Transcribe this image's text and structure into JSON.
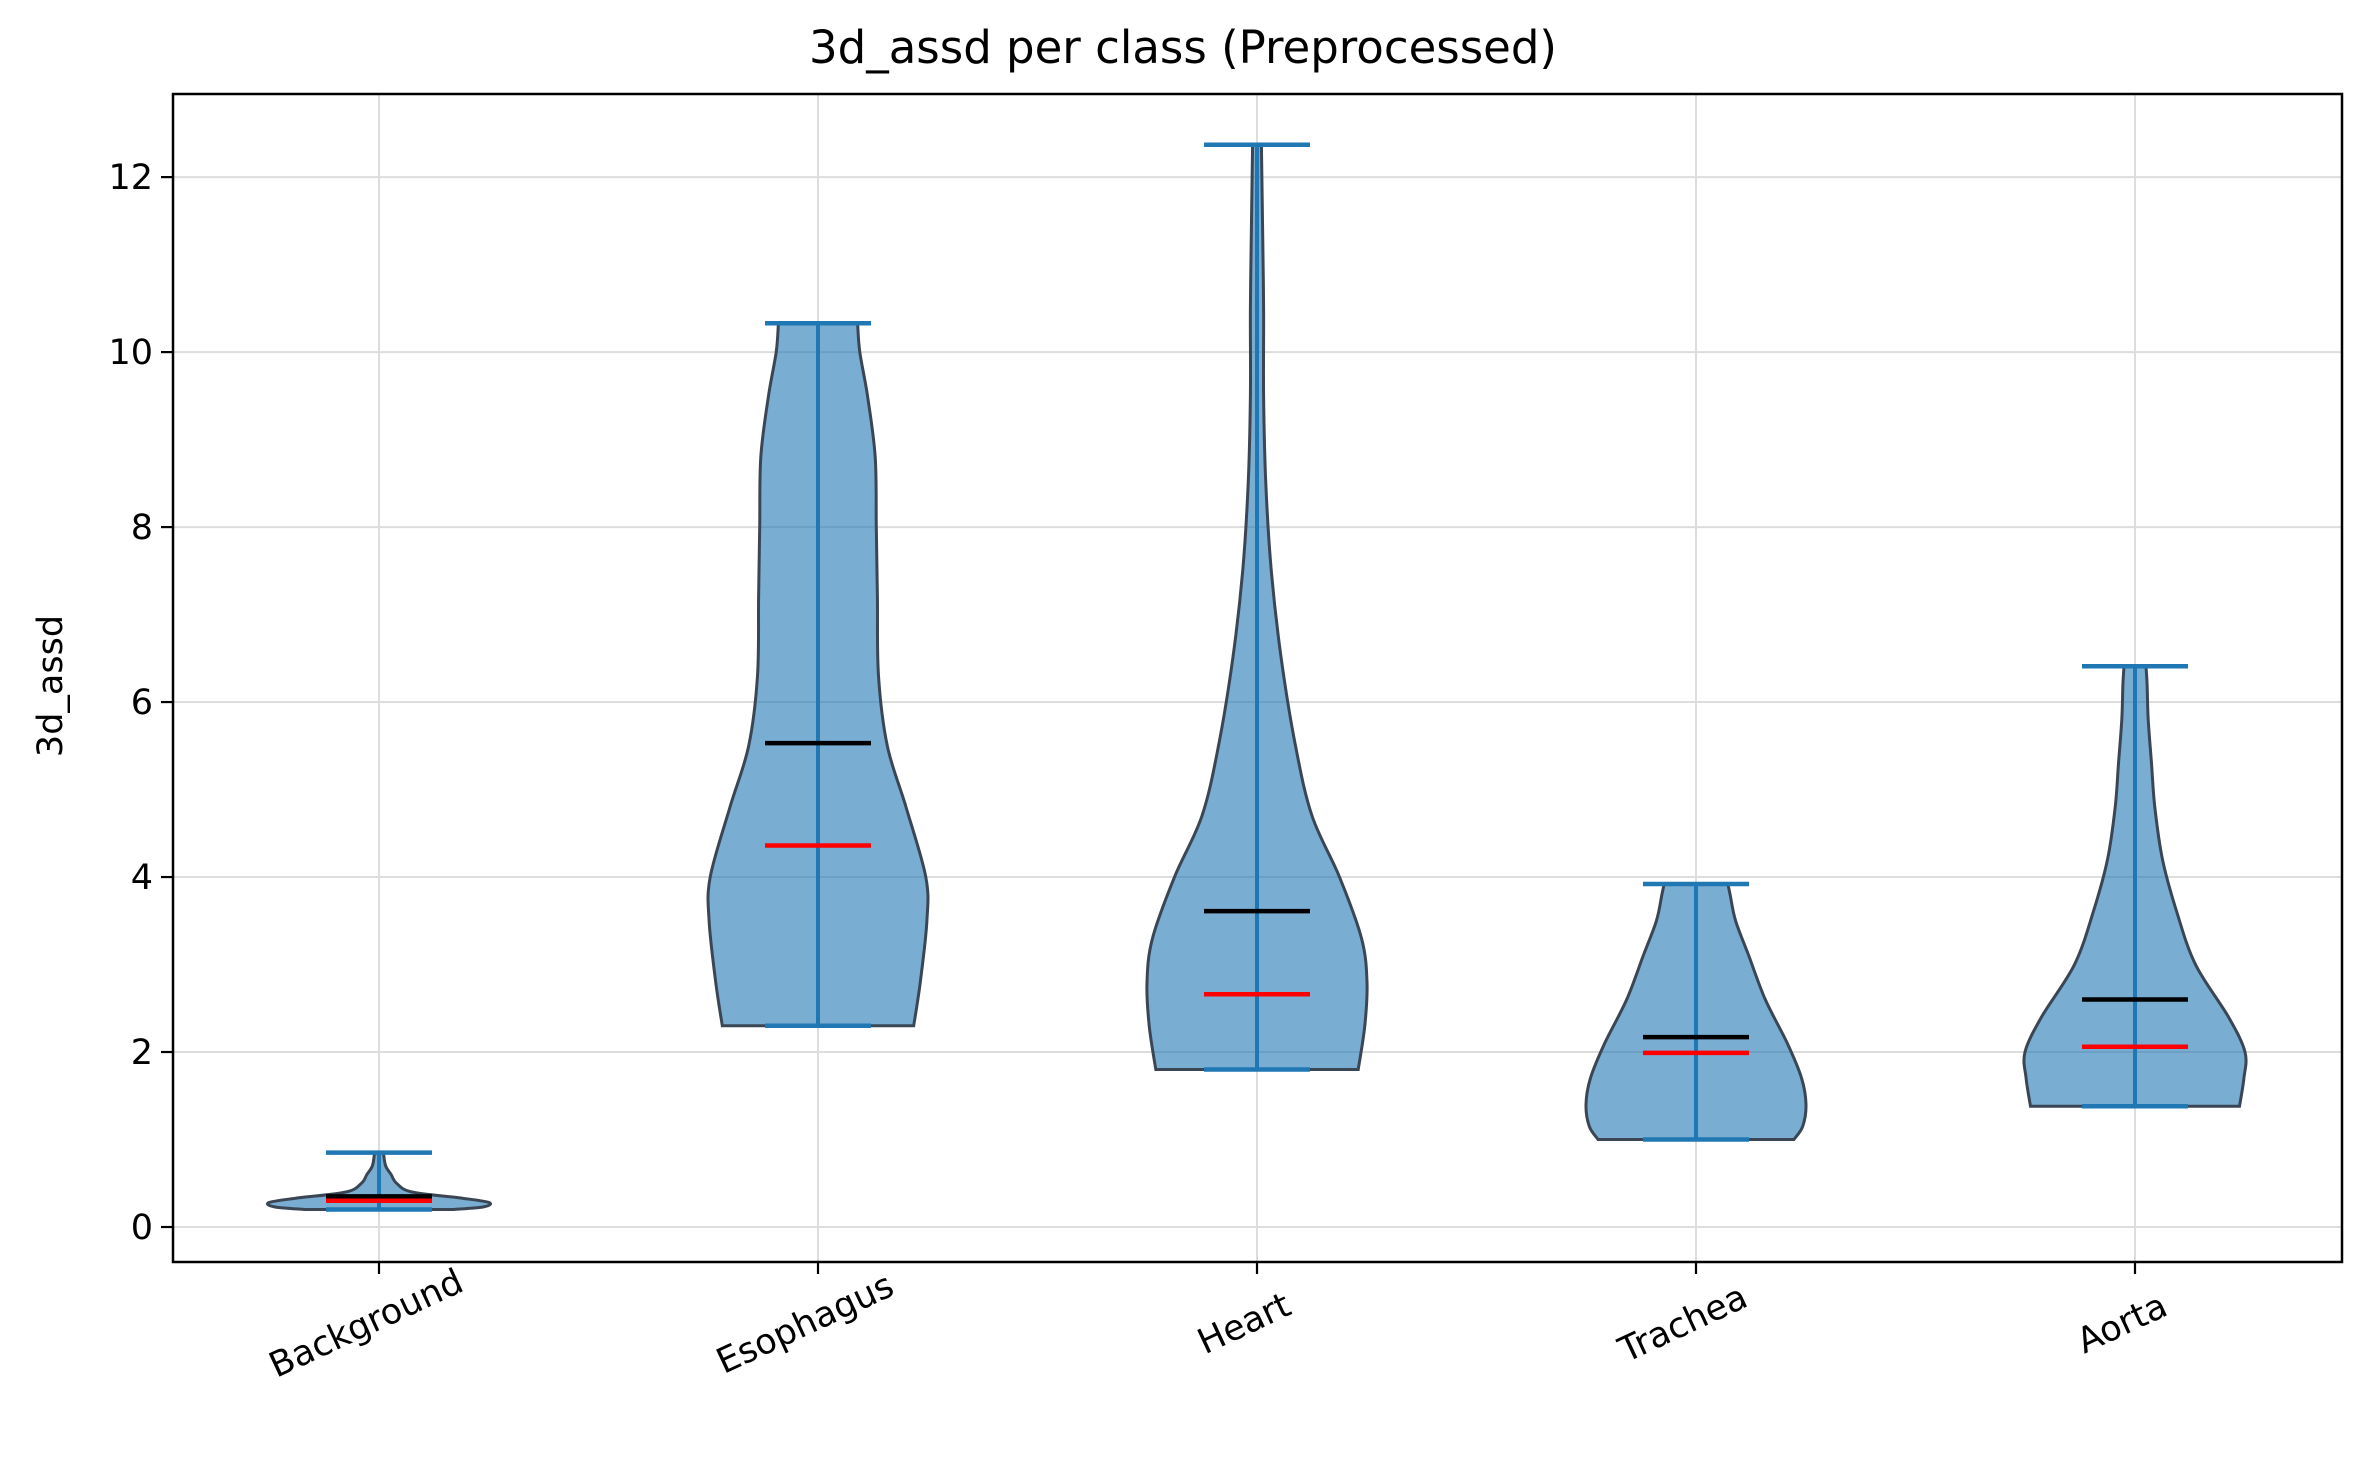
{
  "chart_data": {
    "type": "violin",
    "title": "3d_assd per class (Preprocessed)",
    "xlabel": "",
    "ylabel": "3d_assd",
    "categories": [
      "Background",
      "Esophagus",
      "Heart",
      "Trachea",
      "Aorta"
    ],
    "ylim": [
      -0.4,
      12.95
    ],
    "yticks": [
      0,
      2,
      4,
      6,
      8,
      10,
      12
    ],
    "grid": true,
    "violins": [
      {
        "category": "Background",
        "min": 0.2,
        "max": 0.85,
        "mean": 0.35,
        "median": 0.3,
        "profile": [
          [
            0.2,
            0.68
          ],
          [
            0.23,
            0.95
          ],
          [
            0.28,
            1.0
          ],
          [
            0.33,
            0.75
          ],
          [
            0.4,
            0.3
          ],
          [
            0.5,
            0.16
          ],
          [
            0.6,
            0.11
          ],
          [
            0.7,
            0.06
          ],
          [
            0.85,
            0.04
          ]
        ]
      },
      {
        "category": "Esophagus",
        "min": 2.3,
        "max": 10.33,
        "mean": 5.53,
        "median": 4.36,
        "profile": [
          [
            2.3,
            0.87
          ],
          [
            2.8,
            0.93
          ],
          [
            3.5,
            0.99
          ],
          [
            4.0,
            0.98
          ],
          [
            4.8,
            0.8
          ],
          [
            5.5,
            0.63
          ],
          [
            6.3,
            0.55
          ],
          [
            7.2,
            0.54
          ],
          [
            8.0,
            0.53
          ],
          [
            8.8,
            0.52
          ],
          [
            9.5,
            0.45
          ],
          [
            10.0,
            0.38
          ],
          [
            10.33,
            0.36
          ]
        ]
      },
      {
        "category": "Heart",
        "min": 1.8,
        "max": 12.37,
        "mean": 3.61,
        "median": 2.66,
        "profile": [
          [
            1.8,
            0.92
          ],
          [
            2.3,
            0.98
          ],
          [
            2.8,
            1.0
          ],
          [
            3.3,
            0.95
          ],
          [
            4.0,
            0.75
          ],
          [
            4.7,
            0.5
          ],
          [
            5.5,
            0.35
          ],
          [
            6.5,
            0.22
          ],
          [
            7.5,
            0.13
          ],
          [
            8.5,
            0.08
          ],
          [
            9.5,
            0.06
          ],
          [
            10.5,
            0.06
          ],
          [
            11.5,
            0.05
          ],
          [
            12.37,
            0.04
          ]
        ]
      },
      {
        "category": "Trachea",
        "min": 1.0,
        "max": 3.92,
        "mean": 2.17,
        "median": 1.99,
        "profile": [
          [
            1.0,
            0.89
          ],
          [
            1.15,
            0.97
          ],
          [
            1.4,
            1.0
          ],
          [
            1.7,
            0.96
          ],
          [
            2.1,
            0.83
          ],
          [
            2.6,
            0.63
          ],
          [
            3.1,
            0.48
          ],
          [
            3.5,
            0.36
          ],
          [
            3.8,
            0.31
          ],
          [
            3.92,
            0.29
          ]
        ]
      },
      {
        "category": "Aorta",
        "min": 1.38,
        "max": 6.41,
        "mean": 2.6,
        "median": 2.06,
        "profile": [
          [
            1.38,
            0.95
          ],
          [
            1.7,
            0.99
          ],
          [
            2.0,
            1.0
          ],
          [
            2.4,
            0.85
          ],
          [
            3.0,
            0.55
          ],
          [
            3.6,
            0.38
          ],
          [
            4.2,
            0.25
          ],
          [
            4.8,
            0.18
          ],
          [
            5.3,
            0.15
          ],
          [
            5.8,
            0.12
          ],
          [
            6.2,
            0.11
          ],
          [
            6.41,
            0.1
          ]
        ]
      }
    ],
    "colors": {
      "body_fill": "#1f77b4",
      "body_edge": "#3b4654",
      "extrema_lines": "#1f77b4",
      "mean_line": "#000000",
      "median_line": "#ff0000",
      "grid": "#dddddd",
      "axes": "#000000"
    }
  }
}
